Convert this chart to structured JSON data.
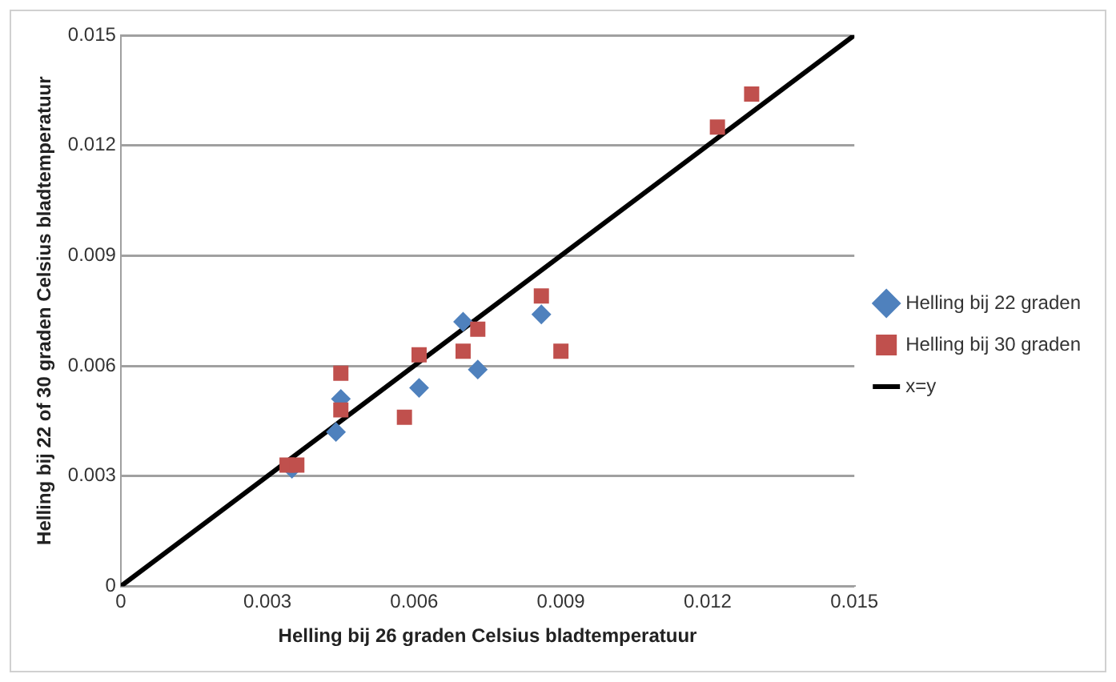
{
  "chart_data": {
    "type": "scatter",
    "xlabel": "Helling bij 26 graden Celsius bladtemperatuur",
    "ylabel": "Helling bij 22 of 30 graden Celsius bladtemperatuur",
    "xlim": [
      0,
      0.015
    ],
    "xticks": [
      0,
      0.003,
      0.006,
      0.009,
      0.012,
      0.015
    ],
    "ylim": [
      0,
      0.015
    ],
    "yticks": [
      0,
      0.003,
      0.006,
      0.009,
      0.012,
      0.015
    ],
    "grid": "y",
    "legend": "right",
    "series": [
      {
        "name": "Helling bij 22 graden",
        "color": "#4f81bd",
        "marker": "diamond",
        "x": [
          0.0035,
          0.0044,
          0.0045,
          0.0061,
          0.007,
          0.0073,
          0.0086
        ],
        "values": [
          0.0032,
          0.0042,
          0.0051,
          0.0054,
          0.0072,
          0.0059,
          0.0074
        ]
      },
      {
        "name": "Helling bij 30 graden",
        "color": "#c0504d",
        "marker": "square",
        "x": [
          0.0034,
          0.0036,
          0.0045,
          0.0045,
          0.0058,
          0.0061,
          0.007,
          0.0073,
          0.0086,
          0.009,
          0.0122,
          0.0129
        ],
        "values": [
          0.0033,
          0.0033,
          0.0048,
          0.0058,
          0.0046,
          0.0063,
          0.0064,
          0.007,
          0.0079,
          0.0064,
          0.0125,
          0.0134
        ]
      },
      {
        "name": "x=y",
        "type": "line",
        "color": "#000000",
        "marker": "none",
        "x": [
          0,
          0.015
        ],
        "values": [
          0,
          0.015
        ]
      }
    ]
  }
}
